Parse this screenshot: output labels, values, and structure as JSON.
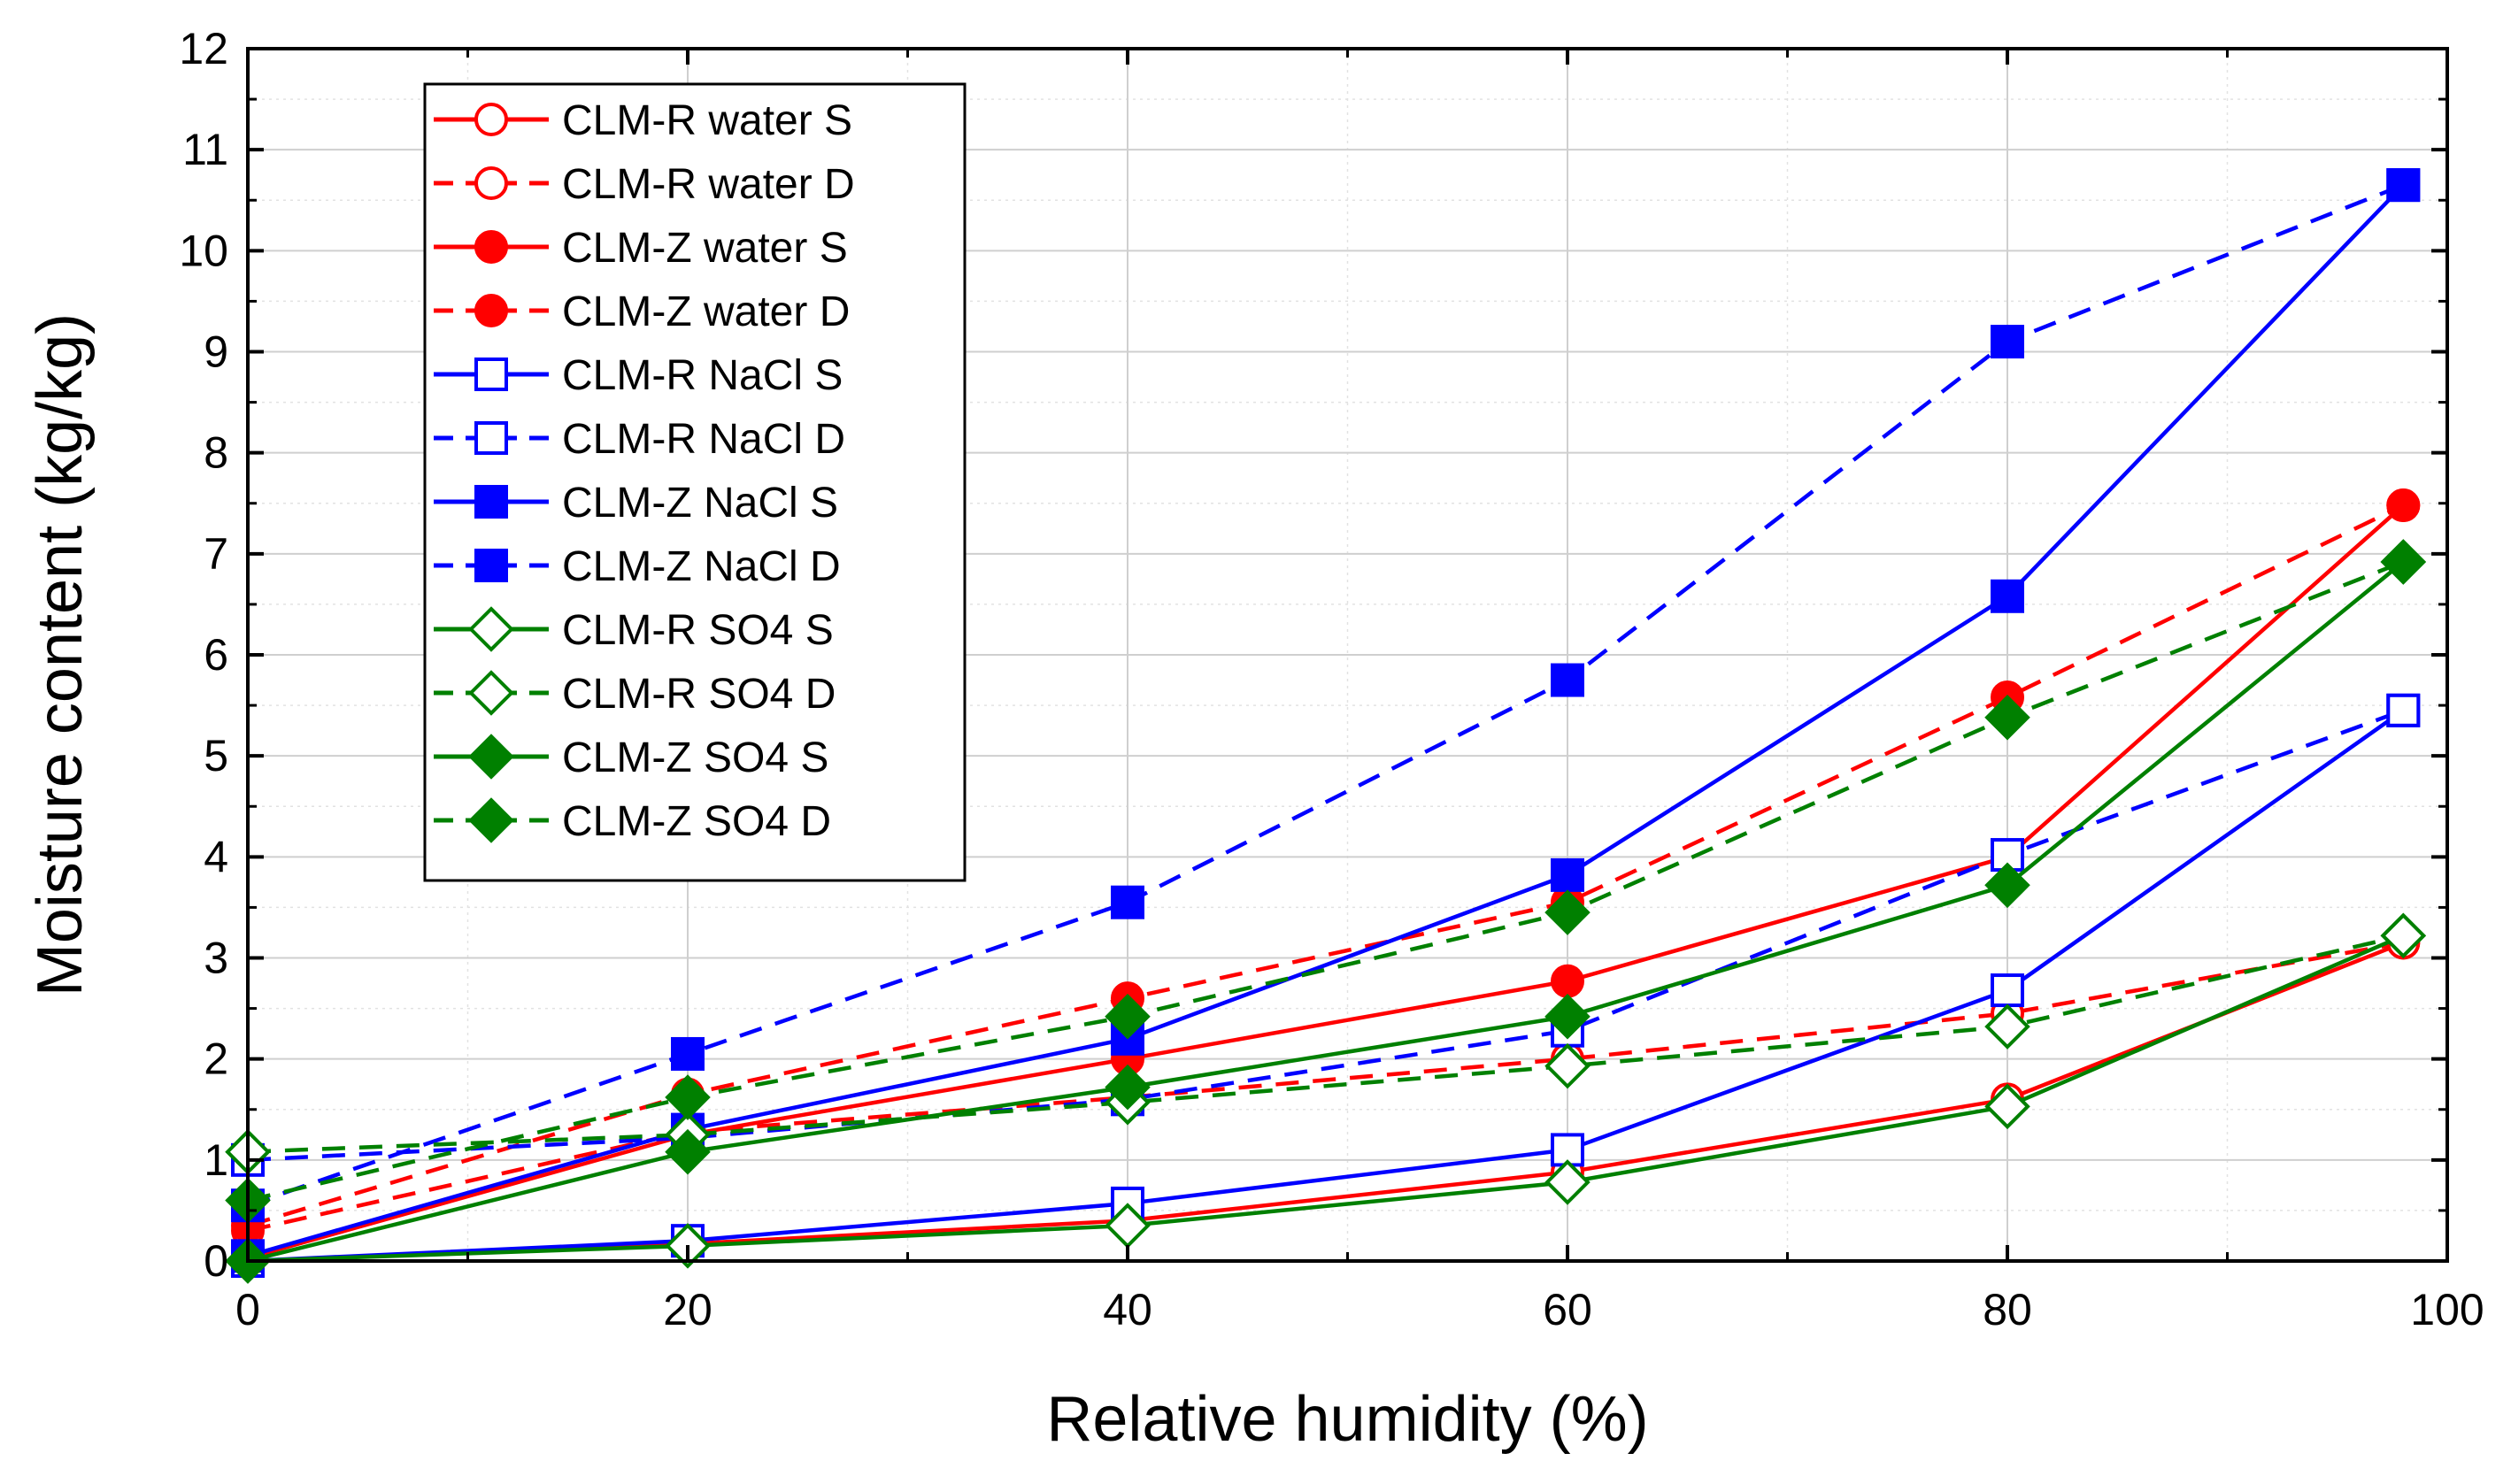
{
  "chart_data": {
    "type": "line",
    "title": "",
    "xlabel": "Relative humidity (%)",
    "ylabel": "Moisture content (kg/kg)",
    "xlim": [
      0,
      100
    ],
    "ylim": [
      0,
      12
    ],
    "xticks": [
      0,
      20,
      40,
      60,
      80,
      100
    ],
    "yticks": [
      0,
      1,
      2,
      3,
      4,
      5,
      6,
      7,
      8,
      9,
      10,
      11,
      12
    ],
    "x_minor_grid": [
      10,
      30,
      50,
      70,
      90
    ],
    "y_minor_grid": [
      0.5,
      1.5,
      2.5,
      3.5,
      4.5,
      5.5,
      6.5,
      7.5,
      8.5,
      9.5,
      10.5,
      11.5
    ],
    "grid": true,
    "legend_position": "top-left",
    "x": [
      0,
      20,
      40,
      60,
      80,
      98
    ],
    "series": [
      {
        "name": "CLM-R water S",
        "color": "#ff0000",
        "dash": "solid",
        "marker": "circle",
        "filled": false,
        "values": [
          0.0,
          0.17,
          0.4,
          0.88,
          1.6,
          3.15
        ]
      },
      {
        "name": "CLM-R water D",
        "color": "#ff0000",
        "dash": "dashed",
        "marker": "circle",
        "filled": false,
        "values": [
          0.3,
          1.28,
          1.62,
          2.0,
          2.45,
          3.15
        ]
      },
      {
        "name": "CLM-Z water S",
        "color": "#ff0000",
        "dash": "solid",
        "marker": "circle",
        "filled": true,
        "values": [
          0.03,
          1.25,
          2.0,
          2.77,
          4.0,
          7.48
        ]
      },
      {
        "name": "CLM-Z water D",
        "color": "#ff0000",
        "dash": "dashed",
        "marker": "circle",
        "filled": true,
        "values": [
          0.35,
          1.65,
          2.6,
          3.55,
          5.58,
          7.48
        ]
      },
      {
        "name": "CLM-R NaCl S",
        "color": "#0000ff",
        "dash": "solid",
        "marker": "square",
        "filled": false,
        "values": [
          0.0,
          0.2,
          0.57,
          1.1,
          2.68,
          5.45
        ]
      },
      {
        "name": "CLM-R NaCl D",
        "color": "#0000ff",
        "dash": "dashed",
        "marker": "square",
        "filled": false,
        "values": [
          1.0,
          1.22,
          1.6,
          2.28,
          4.02,
          5.45
        ]
      },
      {
        "name": "CLM-Z NaCl S",
        "color": "#0000ff",
        "dash": "solid",
        "marker": "square",
        "filled": true,
        "values": [
          0.05,
          1.3,
          2.2,
          3.82,
          6.58,
          10.65
        ]
      },
      {
        "name": "CLM-Z NaCl D",
        "color": "#0000ff",
        "dash": "dashed",
        "marker": "square",
        "filled": true,
        "values": [
          0.55,
          2.05,
          3.55,
          5.75,
          9.1,
          10.65
        ]
      },
      {
        "name": "CLM-R SO4 S",
        "color": "#008000",
        "dash": "solid",
        "marker": "diamond",
        "filled": false,
        "values": [
          0.0,
          0.15,
          0.35,
          0.78,
          1.53,
          3.22
        ]
      },
      {
        "name": "CLM-R SO4 D",
        "color": "#008000",
        "dash": "dashed",
        "marker": "diamond",
        "filled": false,
        "values": [
          1.08,
          1.25,
          1.57,
          1.93,
          2.32,
          3.22
        ]
      },
      {
        "name": "CLM-Z SO4 S",
        "color": "#008000",
        "dash": "solid",
        "marker": "diamond",
        "filled": true,
        "values": [
          0.0,
          1.08,
          1.72,
          2.42,
          3.72,
          6.92
        ]
      },
      {
        "name": "CLM-Z SO4 D",
        "color": "#008000",
        "dash": "dashed",
        "marker": "diamond",
        "filled": true,
        "values": [
          0.6,
          1.62,
          2.42,
          3.45,
          5.38,
          6.92
        ]
      }
    ]
  }
}
